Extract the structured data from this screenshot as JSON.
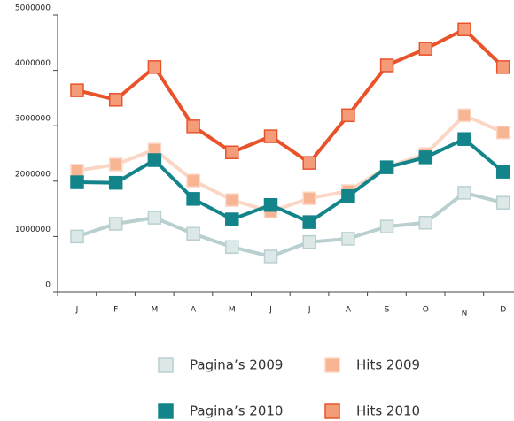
{
  "chart_data": {
    "type": "line",
    "categories": [
      "J",
      "F",
      "M",
      "A",
      "M",
      "J",
      "J",
      "A",
      "S",
      "O",
      "N",
      "D"
    ],
    "series": [
      {
        "name": "Pagina’s 2009",
        "color": "#b9cfd0",
        "marker_color": "#dde9e9",
        "values": [
          1000000,
          1230000,
          1340000,
          1050000,
          810000,
          640000,
          900000,
          960000,
          1180000,
          1250000,
          1790000,
          1610000
        ]
      },
      {
        "name": "Hits 2009",
        "color": "#fcd6c4",
        "marker_color": "#f8b594",
        "values": [
          2190000,
          2300000,
          2570000,
          2010000,
          1660000,
          1450000,
          1690000,
          1820000,
          2250000,
          2490000,
          3190000,
          2880000
        ]
      },
      {
        "name": "Pagina’s 2010",
        "color": "#13858a",
        "marker_color": "#13858a",
        "values": [
          1980000,
          1970000,
          2380000,
          1680000,
          1310000,
          1570000,
          1260000,
          1730000,
          2250000,
          2430000,
          2760000,
          2170000
        ]
      },
      {
        "name": "Hits 2010",
        "color": "#e8532b",
        "marker_color": "#f49c78",
        "values": [
          3640000,
          3470000,
          4060000,
          2990000,
          2520000,
          2810000,
          2330000,
          3190000,
          4090000,
          4390000,
          4740000,
          4060000
        ]
      }
    ],
    "ylim": [
      0,
      5000000
    ],
    "yticks": [
      0,
      1000000,
      2000000,
      3000000,
      4000000,
      5000000
    ]
  }
}
